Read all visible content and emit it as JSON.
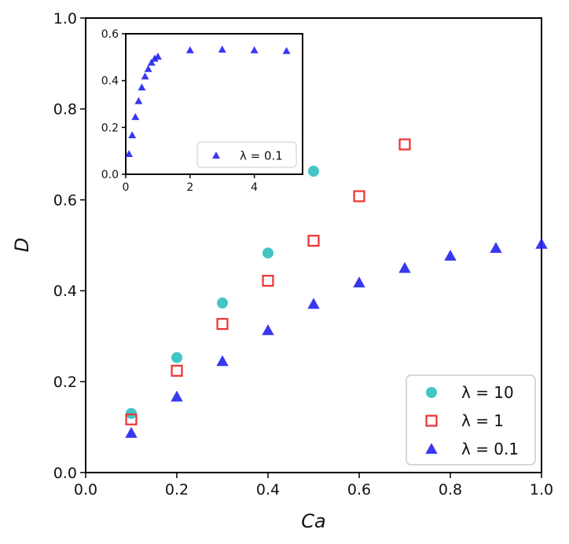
{
  "chart_data": [
    {
      "type": "scatter",
      "title": "",
      "xlabel": "Ca",
      "ylabel": "D",
      "xlim": [
        0.0,
        1.0
      ],
      "ylim": [
        0.0,
        1.0
      ],
      "xticks": [
        "0.0",
        "0.2",
        "0.4",
        "0.6",
        "0.8",
        "1.0"
      ],
      "yticks": [
        "0.0",
        "0.2",
        "0.4",
        "0.6",
        "0.8",
        "1.0"
      ],
      "grid": false,
      "legend_position": "bottom-right",
      "series": [
        {
          "name": "λ = 10",
          "marker": "circle",
          "color": "#2ebfbf",
          "x": [
            0.1,
            0.2,
            0.3,
            0.4,
            0.5
          ],
          "y": [
            0.13,
            0.253,
            0.373,
            0.483,
            0.663
          ]
        },
        {
          "name": "λ = 1",
          "marker": "square-open",
          "color": "#ee3333",
          "x": [
            0.1,
            0.2,
            0.3,
            0.4,
            0.5,
            0.6,
            0.7
          ],
          "y": [
            0.117,
            0.224,
            0.327,
            0.422,
            0.51,
            0.608,
            0.722
          ]
        },
        {
          "name": "λ = 0.1",
          "marker": "triangle",
          "color": "#2222ee",
          "x": [
            0.1,
            0.2,
            0.3,
            0.4,
            0.5,
            0.6,
            0.7,
            0.8,
            0.9,
            1.0
          ],
          "y": [
            0.087,
            0.167,
            0.245,
            0.313,
            0.371,
            0.418,
            0.45,
            0.477,
            0.494,
            0.503
          ]
        }
      ]
    },
    {
      "type": "scatter",
      "title": "",
      "xlabel": "",
      "ylabel": "",
      "xlim": [
        0,
        5.5
      ],
      "ylim": [
        0.0,
        0.6
      ],
      "xticks": [
        "0",
        "2",
        "4"
      ],
      "yticks": [
        "0.0",
        "0.2",
        "0.4",
        "0.6"
      ],
      "grid": false,
      "legend_position": "bottom-right",
      "series": [
        {
          "name": "λ = 0.1",
          "marker": "triangle",
          "color": "#2222ee",
          "x": [
            0.1,
            0.2,
            0.3,
            0.4,
            0.5,
            0.6,
            0.7,
            0.8,
            0.9,
            1.0,
            2.0,
            3.0,
            4.0,
            5.0
          ],
          "y": [
            0.087,
            0.167,
            0.245,
            0.313,
            0.371,
            0.418,
            0.45,
            0.477,
            0.494,
            0.503,
            0.53,
            0.533,
            0.53,
            0.527
          ]
        }
      ]
    }
  ]
}
